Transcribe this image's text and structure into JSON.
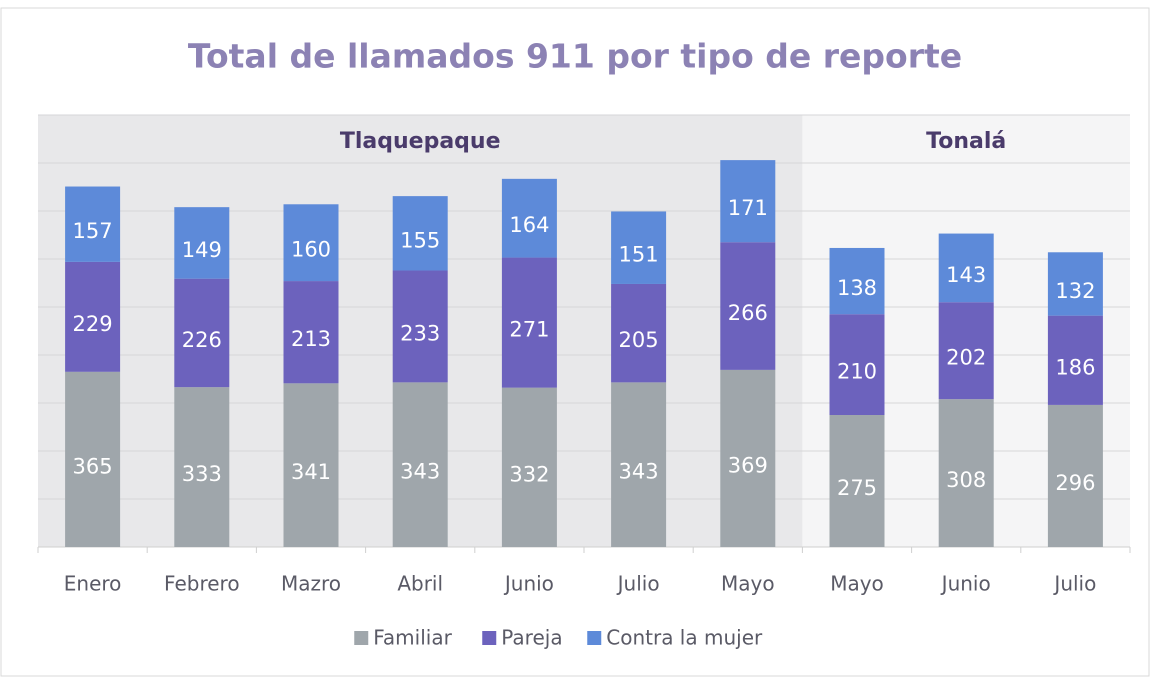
{
  "chart_data": {
    "type": "stacked_bar",
    "title": "Total de llamados 911 por tipo de reporte",
    "groups": [
      {
        "name": "Tlaquepaque",
        "categories": [
          "Enero",
          "Febrero",
          "Mazro",
          "Abril",
          "Junio",
          "Julio",
          "Mayo"
        ]
      },
      {
        "name": "Tonalá",
        "categories": [
          "Mayo",
          "Junio",
          "Julio"
        ]
      }
    ],
    "series": [
      {
        "name": "Familiar",
        "color": "#9fa6ab",
        "values": [
          365,
          333,
          341,
          343,
          332,
          343,
          369,
          275,
          308,
          296
        ]
      },
      {
        "name": "Pareja",
        "color": "#6c62bd",
        "values": [
          229,
          226,
          213,
          233,
          271,
          205,
          266,
          210,
          202,
          186
        ]
      },
      {
        "name": "Contra la mujer",
        "color": "#5d8ad9",
        "values": [
          157,
          149,
          160,
          155,
          164,
          151,
          171,
          138,
          143,
          132
        ]
      }
    ],
    "ylim": [
      0,
      900
    ],
    "yticks": [
      0,
      100,
      200,
      300,
      400,
      500,
      600,
      700,
      800,
      900
    ],
    "grid": true,
    "legend": "bottom"
  }
}
